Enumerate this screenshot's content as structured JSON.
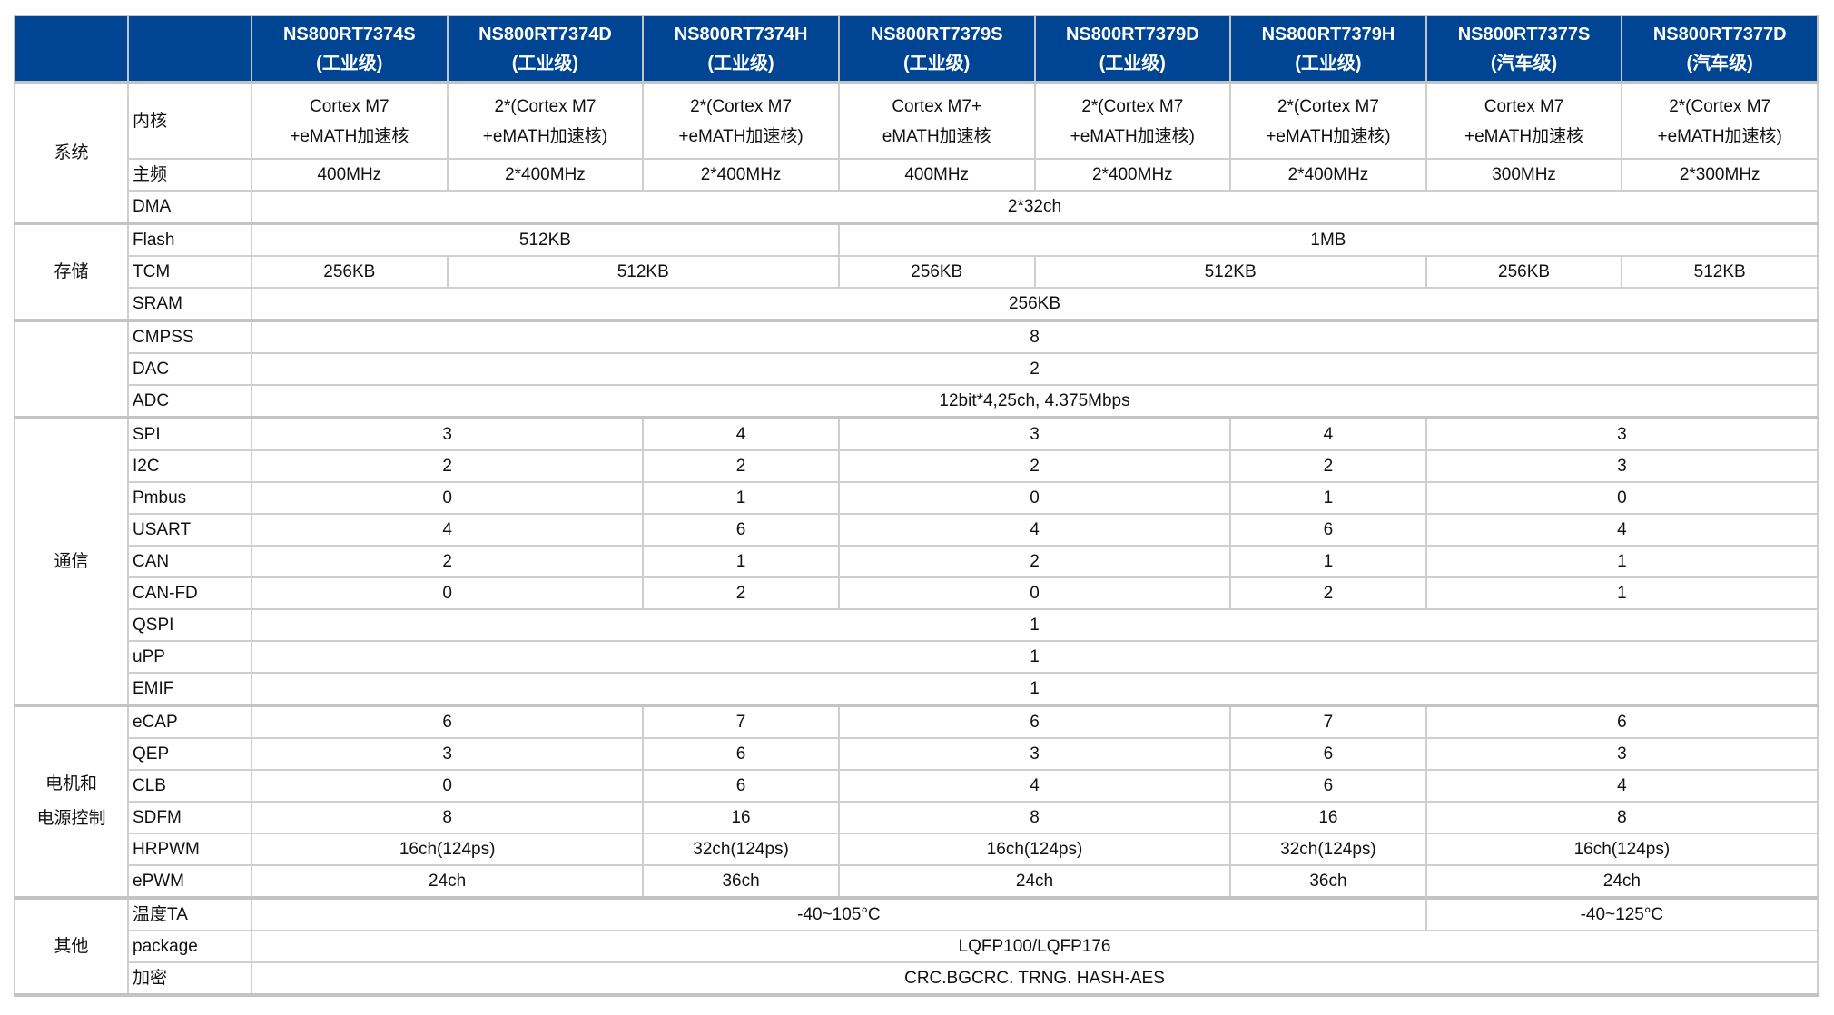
{
  "colors": {
    "header_bg": "#004494",
    "header_text": "#ffffff",
    "border": "#cfcfcf"
  },
  "header": [
    {
      "model": "NS800RT7374S",
      "grade": "(工业级)"
    },
    {
      "model": "NS800RT7374D",
      "grade": "(工业级)"
    },
    {
      "model": "NS800RT7374H",
      "grade": "(工业级)"
    },
    {
      "model": "NS800RT7379S",
      "grade": "(工业级)"
    },
    {
      "model": "NS800RT7379D",
      "grade": "(工业级)"
    },
    {
      "model": "NS800RT7379H",
      "grade": "(工业级)"
    },
    {
      "model": "NS800RT7377S",
      "grade": "(汽车级)"
    },
    {
      "model": "NS800RT7377D",
      "grade": "(汽车级)"
    }
  ],
  "groups": [
    {
      "name": "系统",
      "rows": [
        {
          "label": "内核",
          "cells": [
            {
              "v": "Cortex M7\n+eMATH加速核",
              "s": 1
            },
            {
              "v": "2*(Cortex M7\n+eMATH加速核)",
              "s": 1
            },
            {
              "v": "2*(Cortex M7\n+eMATH加速核)",
              "s": 1
            },
            {
              "v": "Cortex M7+\neMATH加速核",
              "s": 1
            },
            {
              "v": "2*(Cortex M7\n+eMATH加速核)",
              "s": 1
            },
            {
              "v": "2*(Cortex M7\n+eMATH加速核)",
              "s": 1
            },
            {
              "v": "Cortex M7\n+eMATH加速核",
              "s": 1
            },
            {
              "v": "2*(Cortex M7\n+eMATH加速核)",
              "s": 1
            }
          ]
        },
        {
          "label": "主频",
          "cells": [
            {
              "v": "400MHz",
              "s": 1
            },
            {
              "v": "2*400MHz",
              "s": 1
            },
            {
              "v": "2*400MHz",
              "s": 1
            },
            {
              "v": "400MHz",
              "s": 1
            },
            {
              "v": "2*400MHz",
              "s": 1
            },
            {
              "v": "2*400MHz",
              "s": 1
            },
            {
              "v": "300MHz",
              "s": 1
            },
            {
              "v": "2*300MHz",
              "s": 1
            }
          ]
        },
        {
          "label": "DMA",
          "cells": [
            {
              "v": "2*32ch",
              "s": 8
            }
          ]
        }
      ]
    },
    {
      "name": "存储",
      "rows": [
        {
          "label": "Flash",
          "cells": [
            {
              "v": "512KB",
              "s": 3
            },
            {
              "v": "1MB",
              "s": 5
            }
          ]
        },
        {
          "label": "TCM",
          "cells": [
            {
              "v": "256KB",
              "s": 1
            },
            {
              "v": "512KB",
              "s": 2
            },
            {
              "v": "256KB",
              "s": 1
            },
            {
              "v": "512KB",
              "s": 2
            },
            {
              "v": "256KB",
              "s": 1
            },
            {
              "v": "512KB",
              "s": 1
            }
          ]
        },
        {
          "label": "SRAM",
          "cells": [
            {
              "v": "256KB",
              "s": 8
            }
          ]
        }
      ]
    },
    {
      "name": "",
      "rows": [
        {
          "label": "CMPSS",
          "cells": [
            {
              "v": "8",
              "s": 8
            }
          ]
        },
        {
          "label": "DAC",
          "cells": [
            {
              "v": "2",
              "s": 8
            }
          ]
        },
        {
          "label": "ADC",
          "cells": [
            {
              "v": "12bit*4,25ch, 4.375Mbps",
              "s": 8
            }
          ]
        }
      ]
    },
    {
      "name": "通信",
      "rows": [
        {
          "label": "SPI",
          "cells": [
            {
              "v": "3",
              "s": 2
            },
            {
              "v": "4",
              "s": 1
            },
            {
              "v": "3",
              "s": 2
            },
            {
              "v": "4",
              "s": 1
            },
            {
              "v": "3",
              "s": 2
            }
          ]
        },
        {
          "label": "I2C",
          "cells": [
            {
              "v": "2",
              "s": 2
            },
            {
              "v": "2",
              "s": 1
            },
            {
              "v": "2",
              "s": 2
            },
            {
              "v": "2",
              "s": 1
            },
            {
              "v": "3",
              "s": 2
            }
          ]
        },
        {
          "label": "Pmbus",
          "cells": [
            {
              "v": "0",
              "s": 2
            },
            {
              "v": "1",
              "s": 1
            },
            {
              "v": "0",
              "s": 2
            },
            {
              "v": "1",
              "s": 1
            },
            {
              "v": "0",
              "s": 2
            }
          ]
        },
        {
          "label": "USART",
          "cells": [
            {
              "v": "4",
              "s": 2
            },
            {
              "v": "6",
              "s": 1
            },
            {
              "v": "4",
              "s": 2
            },
            {
              "v": "6",
              "s": 1
            },
            {
              "v": "4",
              "s": 2
            }
          ]
        },
        {
          "label": "CAN",
          "cells": [
            {
              "v": "2",
              "s": 2
            },
            {
              "v": "1",
              "s": 1
            },
            {
              "v": "2",
              "s": 2
            },
            {
              "v": "1",
              "s": 1
            },
            {
              "v": "1",
              "s": 2
            }
          ]
        },
        {
          "label": "CAN-FD",
          "cells": [
            {
              "v": "0",
              "s": 2
            },
            {
              "v": "2",
              "s": 1
            },
            {
              "v": "0",
              "s": 2
            },
            {
              "v": "2",
              "s": 1
            },
            {
              "v": "1",
              "s": 2
            }
          ]
        },
        {
          "label": "QSPI",
          "cells": [
            {
              "v": "1",
              "s": 8
            }
          ]
        },
        {
          "label": "uPP",
          "cells": [
            {
              "v": "1",
              "s": 8
            }
          ]
        },
        {
          "label": "EMIF",
          "cells": [
            {
              "v": "1",
              "s": 8
            }
          ]
        }
      ]
    },
    {
      "name": "电机和\n电源控制",
      "rows": [
        {
          "label": "eCAP",
          "cells": [
            {
              "v": "6",
              "s": 2
            },
            {
              "v": "7",
              "s": 1
            },
            {
              "v": "6",
              "s": 2
            },
            {
              "v": "7",
              "s": 1
            },
            {
              "v": "6",
              "s": 2
            }
          ]
        },
        {
          "label": "QEP",
          "cells": [
            {
              "v": "3",
              "s": 2
            },
            {
              "v": "6",
              "s": 1
            },
            {
              "v": "3",
              "s": 2
            },
            {
              "v": "6",
              "s": 1
            },
            {
              "v": "3",
              "s": 2
            }
          ]
        },
        {
          "label": "CLB",
          "cells": [
            {
              "v": "0",
              "s": 2
            },
            {
              "v": "6",
              "s": 1
            },
            {
              "v": "4",
              "s": 2
            },
            {
              "v": "6",
              "s": 1
            },
            {
              "v": "4",
              "s": 2
            }
          ]
        },
        {
          "label": "SDFM",
          "cells": [
            {
              "v": "8",
              "s": 2
            },
            {
              "v": "16",
              "s": 1
            },
            {
              "v": "8",
              "s": 2
            },
            {
              "v": "16",
              "s": 1
            },
            {
              "v": "8",
              "s": 2
            }
          ]
        },
        {
          "label": "HRPWM",
          "cells": [
            {
              "v": "16ch(124ps)",
              "s": 2
            },
            {
              "v": "32ch(124ps)",
              "s": 1
            },
            {
              "v": "16ch(124ps)",
              "s": 2
            },
            {
              "v": "32ch(124ps)",
              "s": 1
            },
            {
              "v": "16ch(124ps)",
              "s": 2
            }
          ]
        },
        {
          "label": "ePWM",
          "cells": [
            {
              "v": "24ch",
              "s": 2
            },
            {
              "v": "36ch",
              "s": 1
            },
            {
              "v": "24ch",
              "s": 2
            },
            {
              "v": "36ch",
              "s": 1
            },
            {
              "v": "24ch",
              "s": 2
            }
          ]
        }
      ]
    },
    {
      "name": "其他",
      "rows": [
        {
          "label": "温度TA",
          "cells": [
            {
              "v": "-40~105°C",
              "s": 6
            },
            {
              "v": "-40~125°C",
              "s": 2
            }
          ]
        },
        {
          "label": "package",
          "cells": [
            {
              "v": "LQFP100/LQFP176",
              "s": 8
            }
          ]
        },
        {
          "label": "加密",
          "cells": [
            {
              "v": "CRC.BGCRC. TRNG. HASH-AES",
              "s": 8
            }
          ]
        }
      ]
    }
  ]
}
